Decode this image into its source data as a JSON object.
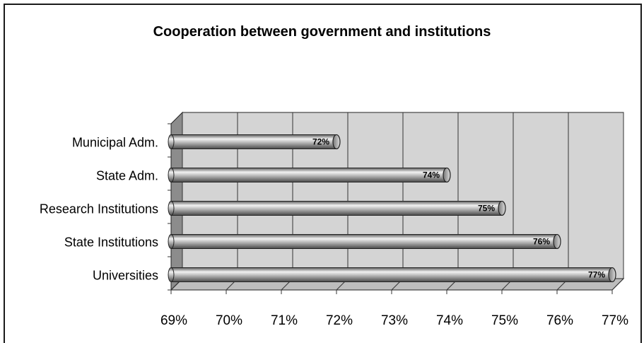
{
  "chart_data": {
    "type": "bar",
    "orientation": "horizontal",
    "title": "Cooperation between government and institutions",
    "categories": [
      "Municipal Adm.",
      "State Adm.",
      "Research Institutions",
      "State Institutions",
      "Universities"
    ],
    "values": [
      72,
      74,
      75,
      76,
      77
    ],
    "data_labels": [
      "72%",
      "74%",
      "75%",
      "76%",
      "77%"
    ],
    "xlim": [
      69,
      77
    ],
    "x_ticks": [
      "69%",
      "70%",
      "71%",
      "72%",
      "73%",
      "74%",
      "75%",
      "76%",
      "77%"
    ],
    "grid": true,
    "legend": "none",
    "style": "3d-cylinder",
    "colors": {
      "plot_wall": "#d4d4d4",
      "floor": "#bdbdbd",
      "side_wall": "#8c8c8c",
      "bar_light": "#f2f2f2",
      "bar_mid": "#b8b8b8",
      "bar_dark": "#5e5e5e"
    }
  }
}
